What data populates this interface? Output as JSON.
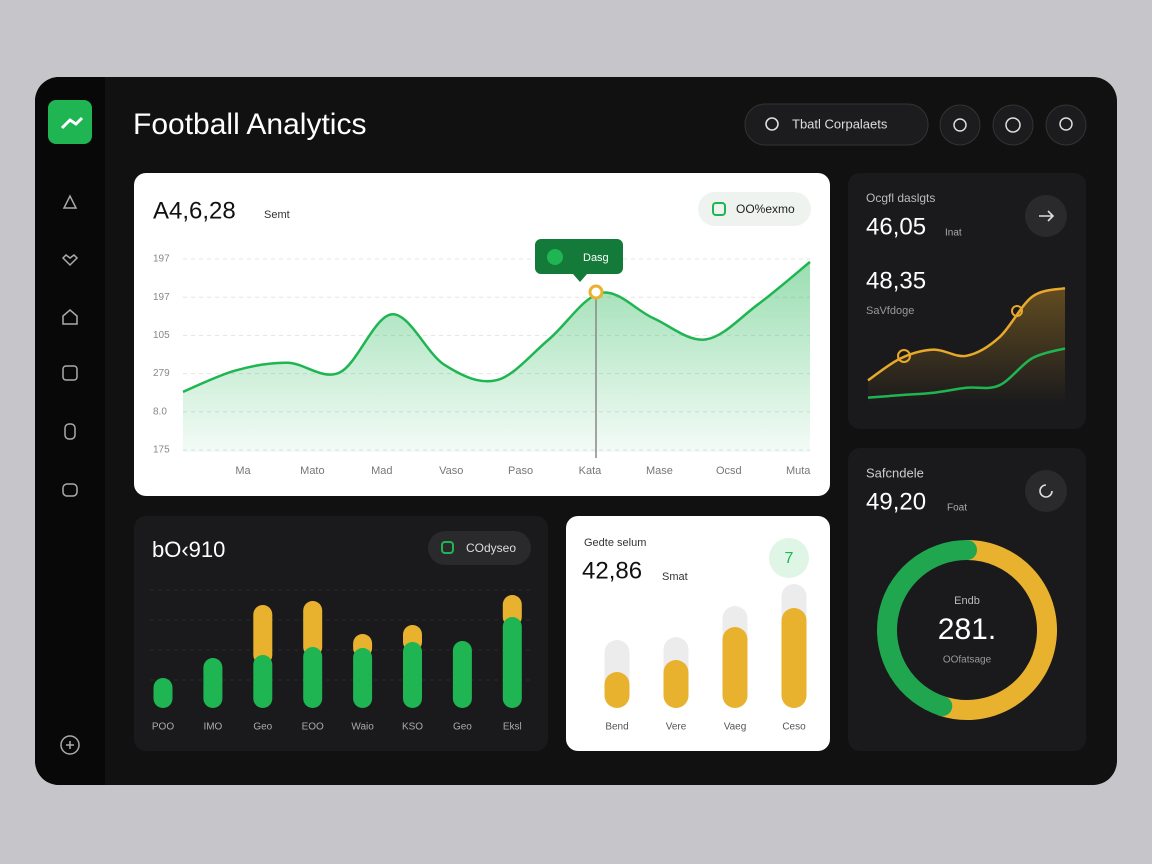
{
  "header": {
    "title": "Football Analytics",
    "search": "Tbatl Corpalaets"
  },
  "main_card": {
    "value": "A4,6,28",
    "unit": "Semt",
    "badge": "OO%exmo",
    "tooltip": "Dasg",
    "y_labels": [
      "197",
      "197",
      "105",
      "279",
      "8.0",
      "175"
    ],
    "x_labels": [
      "Ma",
      "Mato",
      "Mad",
      "Vaso",
      "Paso",
      "Kata",
      "Mase",
      "Ocsd",
      "Muta"
    ],
    "chart": {
      "type": "line",
      "values": [
        31,
        42,
        46,
        41,
        71,
        45,
        37,
        58,
        82,
        69,
        58,
        76,
        98
      ],
      "ylim": [
        0,
        100
      ],
      "color": "#1fb552"
    }
  },
  "trend_card": {
    "label": "Ocgfl daslgts",
    "value": "46,05",
    "unit": "Inat",
    "value2": "48,35",
    "label2": "SaVfdoge",
    "chart": {
      "type": "line",
      "ylim": [
        0,
        100
      ],
      "series": [
        {
          "color": "#e8a92a",
          "values": [
            20,
            38,
            45,
            40,
            55,
            88,
            95
          ]
        },
        {
          "color": "#1fb552",
          "values": [
            6,
            8,
            10,
            14,
            16,
            38,
            46
          ]
        }
      ]
    }
  },
  "bar_card": {
    "title": "bO‹910",
    "badge": "COdyseo",
    "x_labels": [
      "POO",
      "IMO",
      "Geo",
      "EOO",
      "Waio",
      "KSO",
      "Geo",
      "Eksl"
    ],
    "chart": {
      "type": "bar",
      "ylim": [
        0,
        120
      ],
      "series": [
        {
          "color": "#1fb552",
          "values": [
            30,
            50,
            53,
            61,
            60,
            66,
            67,
            91
          ]
        },
        {
          "color": "#e8b22f",
          "values": [
            0,
            0,
            50,
            46,
            14,
            17,
            0,
            22
          ]
        }
      ]
    }
  },
  "score_card": {
    "label": "Gedte selum",
    "value": "42,86",
    "unit": "Smat",
    "badge": "7",
    "x_labels": [
      "Bend",
      "Vere",
      "Vaeg",
      "Ceso"
    ],
    "chart": {
      "type": "bar",
      "ylim": [
        0,
        130
      ],
      "series": [
        {
          "color": "#ececec",
          "values": [
            68,
            71,
            102,
            124
          ]
        },
        {
          "color": "#e8b22f",
          "values": [
            36,
            48,
            81,
            100
          ]
        }
      ]
    }
  },
  "donut_card": {
    "label": "Safcndele",
    "value": "49,20",
    "unit": "Foat",
    "center_label": "Endb",
    "center_value": "281.",
    "center_sub": "OOfatsage",
    "chart": {
      "type": "pie",
      "values": [
        55,
        45
      ],
      "colors": [
        "#e8b22f",
        "#1fa64e"
      ]
    }
  }
}
